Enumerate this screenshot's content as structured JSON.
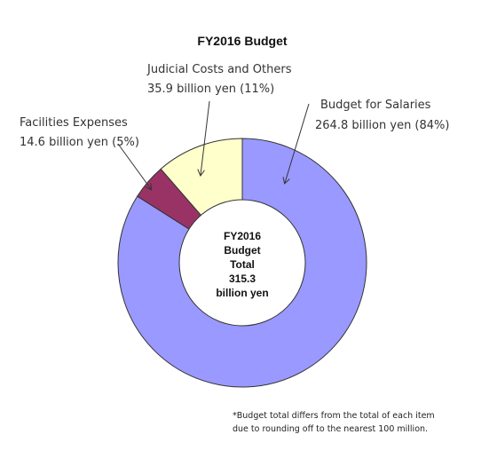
{
  "chart_data": {
    "type": "pie",
    "title": "FY2016 Budget",
    "slices": [
      {
        "label": "Budget for Salaries",
        "value": 264.8,
        "value_text": "264.8 billion yen (84%)",
        "color": "#9999ff"
      },
      {
        "label": "Facilities Expenses",
        "value": 14.6,
        "value_text": "14.6 billion yen (5%)",
        "color": "#993366"
      },
      {
        "label": "Judicial Costs and Others",
        "value": 35.9,
        "value_text": "35.9 billion yen (11%)",
        "color": "#ffffcc"
      }
    ],
    "center_label": [
      "FY2016",
      "Budget",
      "Total",
      "315.3",
      "billion yen"
    ],
    "footnote": [
      "*Budget total differs from the total of each item",
      "due to rounding off to the nearest 100 million."
    ]
  }
}
